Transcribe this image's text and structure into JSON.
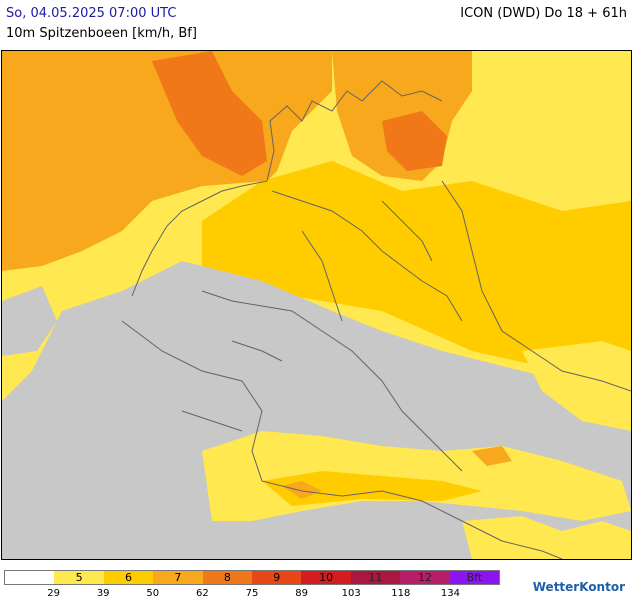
{
  "header": {
    "datetime": "So, 04.05.2025 07:00 UTC",
    "parameter": "10m Spitzenboeen [km/h, Bf]",
    "model_run": "ICON (DWD) Do 18 + 61h"
  },
  "colors": {
    "no_data": "#c8c8c8",
    "bf5": "#ffe850",
    "bf6": "#ffcc00",
    "bf7": "#f7a81c",
    "bf8": "#f07818",
    "bf9": "#e84818",
    "bf10": "#d41c20",
    "bf11": "#a81840",
    "bf12": "#b81e68",
    "bft": "#8c14f0",
    "borders": "#646464"
  },
  "legend": {
    "cells": [
      {
        "label": "",
        "color": "#ffffff"
      },
      {
        "label": "5",
        "color": "#ffe850"
      },
      {
        "label": "6",
        "color": "#ffcc00"
      },
      {
        "label": "7",
        "color": "#f7a81c"
      },
      {
        "label": "8",
        "color": "#f07818"
      },
      {
        "label": "9",
        "color": "#e84818"
      },
      {
        "label": "10",
        "color": "#d41c20"
      },
      {
        "label": "11",
        "color": "#a81840"
      },
      {
        "label": "12",
        "color": "#b81e68"
      },
      {
        "label": "Bft",
        "color": "#8c14f0"
      }
    ],
    "ticks": [
      "29",
      "39",
      "50",
      "62",
      "75",
      "89",
      "103",
      "118",
      "134"
    ]
  },
  "branding": {
    "logo_text": "WetterKontor"
  }
}
